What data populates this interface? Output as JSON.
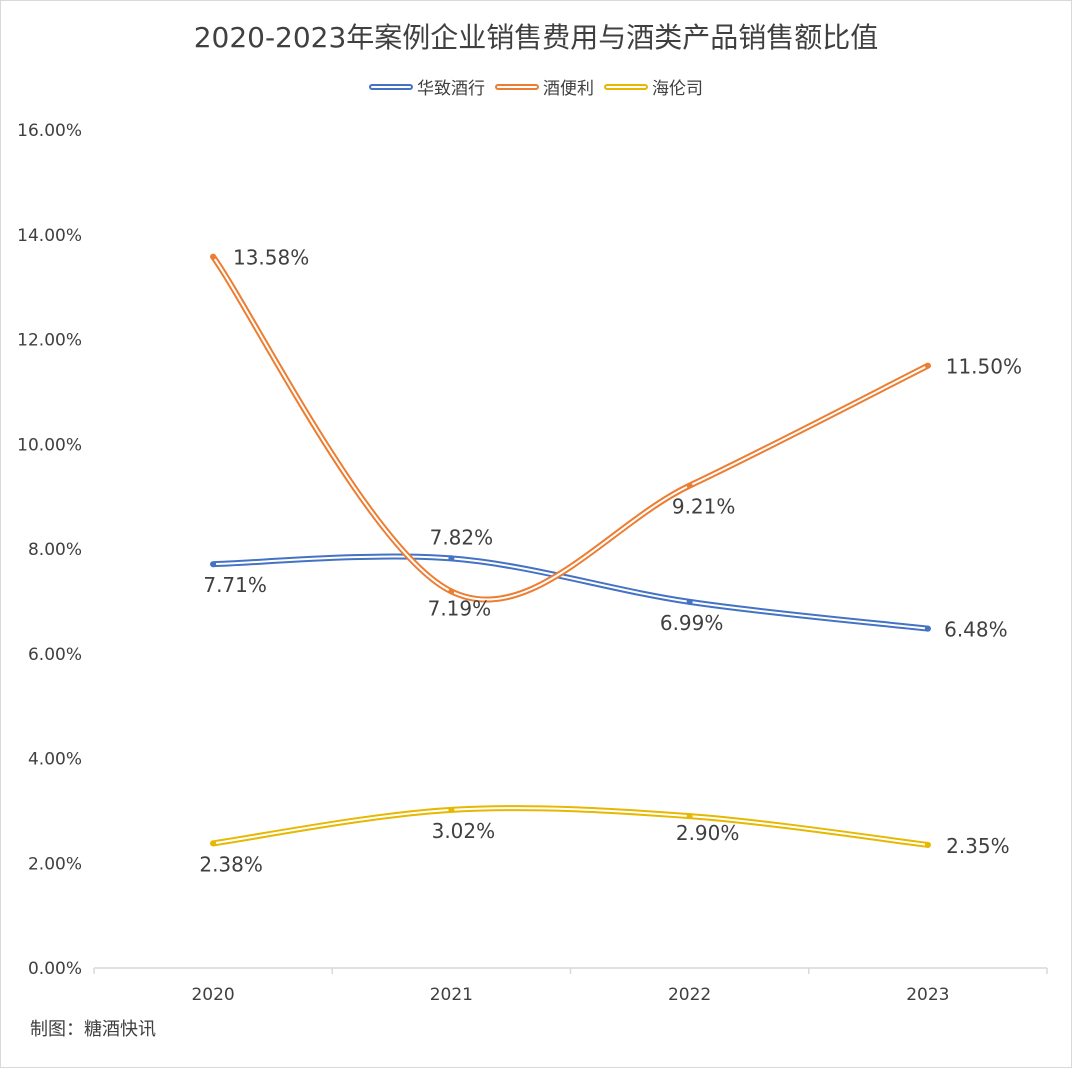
{
  "chart_data": {
    "type": "line",
    "title": "2020-2023年案例企业销售费用与酒类产品销售额比值",
    "categories": [
      "2020",
      "2021",
      "2022",
      "2023"
    ],
    "yticks": [
      "0.00%",
      "2.00%",
      "4.00%",
      "6.00%",
      "8.00%",
      "10.00%",
      "12.00%",
      "14.00%",
      "16.00%"
    ],
    "ylim": [
      0,
      16
    ],
    "legend_position": "top",
    "series": [
      {
        "name": "华致酒行",
        "color": "#4472c4",
        "values": [
          7.71,
          7.82,
          6.99,
          6.48
        ],
        "labels": [
          "7.71%",
          "7.82%",
          "6.99%",
          "6.48%"
        ]
      },
      {
        "name": "酒便利",
        "color": "#ed7d31",
        "values": [
          13.58,
          7.19,
          9.21,
          11.5
        ],
        "labels": [
          "13.58%",
          "7.19%",
          "9.21%",
          "11.50%"
        ]
      },
      {
        "name": "海伦司",
        "color": "#e6b800",
        "values": [
          2.38,
          3.02,
          2.9,
          2.35
        ],
        "labels": [
          "2.38%",
          "3.02%",
          "2.90%",
          "2.35%"
        ]
      }
    ]
  },
  "credit": "制图：糖酒快讯"
}
